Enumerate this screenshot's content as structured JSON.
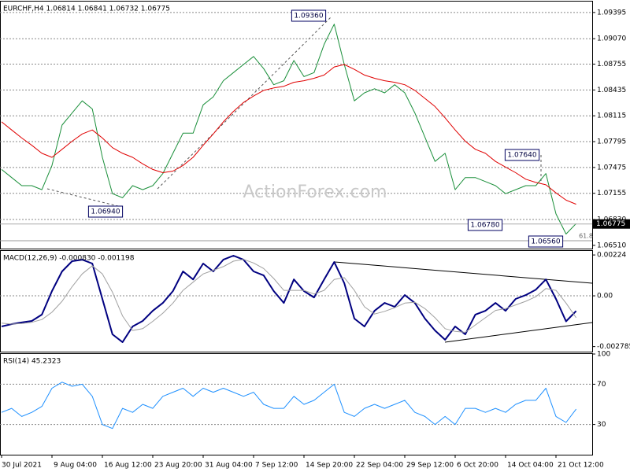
{
  "chart_data": [
    {
      "type": "line",
      "title": "EURCHF,H4 1.06814 1.06841 1.06732 1.06775",
      "series": [
        {
          "name": "EURCHF",
          "color": "#1a8f3a",
          "values": [
            1.0745,
            1.0735,
            1.0725,
            1.0725,
            1.072,
            1.075,
            1.08,
            1.0815,
            1.083,
            1.082,
            1.076,
            1.0715,
            1.071,
            1.0725,
            1.072,
            1.0725,
            1.074,
            1.0765,
            1.079,
            1.079,
            1.0825,
            1.0835,
            1.0855,
            1.0865,
            1.0875,
            1.0885,
            1.087,
            1.085,
            1.0855,
            1.088,
            1.086,
            1.0865,
            1.09,
            1.0925,
            1.0875,
            1.083,
            1.084,
            1.0845,
            1.084,
            1.085,
            1.084,
            1.0815,
            1.0785,
            1.0755,
            1.0765,
            1.072,
            1.0735,
            1.0735,
            1.073,
            1.0725,
            1.0715,
            1.072,
            1.0725,
            1.0725,
            1.074,
            1.069,
            1.0665,
            1.0678
          ]
        },
        {
          "name": "MA",
          "color": "#e00000",
          "values": [
            1.0804,
            1.0794,
            1.0784,
            1.0775,
            1.0765,
            1.076,
            1.077,
            1.078,
            1.0789,
            1.0794,
            1.0784,
            1.0772,
            1.0765,
            1.076,
            1.0752,
            1.0745,
            1.0741,
            1.0743,
            1.075,
            1.076,
            1.0775,
            1.0789,
            1.0804,
            1.0817,
            1.0828,
            1.0836,
            1.0843,
            1.0846,
            1.0848,
            1.0853,
            1.0855,
            1.0858,
            1.0862,
            1.0872,
            1.0875,
            1.0869,
            1.0862,
            1.0858,
            1.0855,
            1.0853,
            1.085,
            1.0843,
            1.0833,
            1.0823,
            1.0809,
            1.0794,
            1.078,
            1.077,
            1.0765,
            1.0755,
            1.0748,
            1.0741,
            1.0733,
            1.0729,
            1.0726,
            1.0716,
            1.0707,
            1.0702
          ]
        }
      ],
      "ylim": [
        1.0647,
        1.0953
      ],
      "yticks": [
        1.09395,
        {
          "value": 1.0907,
          "label": "1.09070"
        },
        1.08755,
        1.08435,
        1.08115,
        1.07795,
        1.07475,
        1.07155,
        {
          "value": 1.0683,
          "label": "1.06830"
        },
        {
          "value": 1.0651,
          "label": "1.06510"
        }
      ],
      "price_line": 1.06775,
      "annotations": [
        "1.09360",
        "1.06940",
        "1.06780",
        "1.07640",
        "1.06560",
        "61.8",
        "ActionForex.com"
      ]
    },
    {
      "type": "line",
      "title": "MACD(12,26,9) -0.000830 -0.001198",
      "series": [
        {
          "name": "MACD",
          "color": "#000080",
          "values": [
            -0.00168,
            -0.00155,
            -0.00146,
            -0.00138,
            -0.00103,
            0.00026,
            0.00134,
            0.0019,
            0.00198,
            0.00177,
            -0.00017,
            -0.00211,
            -0.00254,
            -0.00168,
            -0.00138,
            -0.00082,
            -0.00039,
            0.00026,
            0.00134,
            0.0009,
            0.00177,
            0.00134,
            0.00198,
            0.0022,
            0.00198,
            0.00134,
            0.00112,
            0.00026,
            -0.00039,
            0.0009,
            0.00026,
            -9e-05,
            0.0009,
            0.00185,
            0.00069,
            -0.00125,
            -0.00168,
            -0.00082,
            -0.00039,
            -0.0006,
            4e-05,
            -0.00039,
            -0.00125,
            -0.0019,
            -0.00241,
            -0.00168,
            -0.00211,
            -0.00103,
            -0.00082,
            -0.00039,
            -0.00082,
            -0.00017,
            4e-05,
            0.00034,
            0.0009,
            -0.00017,
            -0.0014,
            -0.00083
          ]
        },
        {
          "name": "Signal",
          "color": "#a0a0a0",
          "values": [
            -0.0015,
            -0.00155,
            -0.00152,
            -0.00145,
            -0.0013,
            -0.0009,
            -0.0003,
            0.0005,
            0.0012,
            0.00165,
            0.0012,
            0.0002,
            -0.0011,
            -0.0019,
            -0.0018,
            -0.0014,
            -0.00095,
            -0.0004,
            0.0003,
            0.00075,
            0.0012,
            0.0014,
            0.0016,
            0.0019,
            0.002,
            0.0018,
            0.0015,
            0.00095,
            0.0003,
            0.0003,
            0.0003,
            0.0001,
            0.0003,
            0.0009,
            0.001,
            0.0003,
            -0.0006,
            -0.001,
            -0.00085,
            -0.00065,
            -0.0004,
            -0.00035,
            -0.0007,
            -0.0012,
            -0.0018,
            -0.00195,
            -0.002,
            -0.0016,
            -0.0012,
            -0.0008,
            -0.0007,
            -0.0005,
            -0.0003,
            -5e-05,
            0.0004,
            0.0003,
            -0.0004,
            -0.0012
          ]
        }
      ],
      "ylim": [
        -0.00306,
        0.00246
      ],
      "yticks": [
        0.00224,
        {
          "value": 0,
          "label": "0.00"
        },
        -0.002785
      ]
    },
    {
      "type": "line",
      "title": "RSI(14) 45.2323",
      "series": [
        {
          "name": "RSI",
          "color": "#1e90ff",
          "values": [
            42,
            46,
            38,
            42,
            48,
            66,
            72,
            68,
            70,
            58,
            30,
            26,
            46,
            42,
            50,
            46,
            58,
            62,
            66,
            58,
            66,
            62,
            66,
            62,
            58,
            62,
            50,
            46,
            46,
            58,
            50,
            54,
            62,
            70,
            42,
            38,
            46,
            50,
            46,
            50,
            54,
            42,
            38,
            30,
            38,
            30,
            46,
            46,
            42,
            46,
            42,
            50,
            54,
            54,
            66,
            38,
            32,
            45.2
          ]
        }
      ],
      "ylim": [
        0,
        100
      ],
      "yticks": [
        100,
        70,
        30
      ],
      "categories": [
        "30 Jul 2021",
        null,
        null,
        null,
        null,
        "9 Aug 04:00",
        null,
        null,
        null,
        null,
        "16 Aug 12:00",
        null,
        null,
        null,
        null,
        "23 Aug 20:00",
        null,
        null,
        null,
        null,
        "31 Aug 04:00",
        null,
        null,
        null,
        null,
        "7 Sep 12:00",
        null,
        null,
        null,
        null,
        "14 Sep 20:00",
        null,
        null,
        null,
        null,
        "22 Sep 04:00",
        null,
        null,
        null,
        null,
        "29 Sep 12:00",
        null,
        null,
        null,
        null,
        "6 Oct 20:00",
        null,
        null,
        null,
        null,
        "14 Oct 04:00",
        null,
        null,
        null,
        null,
        "21 Oct 12:00",
        null,
        null
      ]
    }
  ]
}
